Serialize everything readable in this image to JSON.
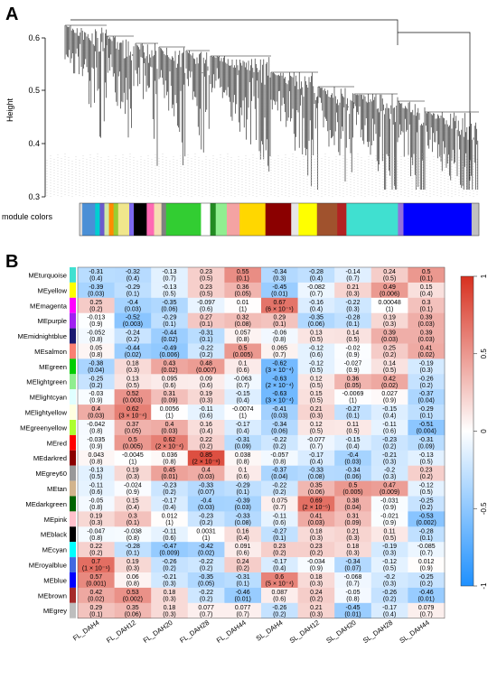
{
  "panel_a": {
    "label": "A",
    "ylabel": "Height",
    "yticks": [
      "0.6",
      "0.5",
      "0.4",
      "0.3"
    ],
    "module_colors_label": "module colors",
    "module_color_bar": [
      "#d9d9d9",
      "#4a8fd6",
      "#00ced1",
      "#6a5acd",
      "#cfe8a8",
      "#ff8c00",
      "#9acd32",
      "#f0e68c",
      "#7b68ee",
      "#000000",
      "#ff69b4",
      "#f5deb3",
      "#808080",
      "#32cd32",
      "#ffffff",
      "#228b22",
      "#90ee90",
      "#f4a3a3",
      "#ffd700",
      "#8b0000",
      "#e6e6e6",
      "#ffff00",
      "#a0522d",
      "#b22222",
      "#40e0d0",
      "#9370db",
      "#0000ff",
      "#c0c0c0"
    ]
  },
  "panel_b": {
    "label": "B",
    "colorbar_ticks": [
      "1",
      "0.5",
      "0",
      "-0.5",
      "-1"
    ],
    "colorbar": {
      "high": "#d7301f",
      "mid": "#ffffff",
      "low": "#1e90ff"
    }
  },
  "chart_data": {
    "type": "heatmap",
    "columns": [
      "FL_DAH4",
      "FL_DAH12",
      "FL_DAH20",
      "FL_DAH28",
      "FL_DAH44",
      "SL_DAH4",
      "SL_DAH12",
      "SL_DAH20",
      "SL_DAH28",
      "SL_DAH44"
    ],
    "rows": [
      {
        "name": "MEturquoise",
        "color": "#40e0d0",
        "values": [
          -0.31,
          -0.32,
          -0.13,
          0.23,
          0.55,
          -0.34,
          -0.28,
          -0.14,
          0.24,
          0.5
        ],
        "pvalues": [
          "(0.4)",
          "(0.4)",
          "(0.7)",
          "(0.5)",
          "(0.1)",
          "(0.3)",
          "(0.4)",
          "(0.7)",
          "(0.5)",
          "(0.1)"
        ]
      },
      {
        "name": "MEyellow",
        "color": "#ffff00",
        "values": [
          -0.39,
          -0.29,
          -0.13,
          0.23,
          0.36,
          -0.45,
          -0.082,
          0.21,
          0.49,
          0.15
        ],
        "pvalues": [
          "(0.03)",
          "(0.1)",
          "(0.5)",
          "(0.5)",
          "(0.05)",
          "(0.01)",
          "(0.7)",
          "(0.3)",
          "(0.006)",
          "(0.4)"
        ]
      },
      {
        "name": "MEmagenta",
        "color": "#ff00ff",
        "values": [
          0.25,
          -0.4,
          -0.35,
          -0.097,
          0.01,
          0.67,
          -0.16,
          -0.22,
          0.00048,
          0.3
        ],
        "pvalues": [
          "(0.2)",
          "(0.03)",
          "(0.06)",
          "(0.6)",
          "(1)",
          "(6 × 10⁻⁵)",
          "(0.4)",
          "(0.3)",
          "(1)",
          "(0.1)"
        ]
      },
      {
        "name": "MEpurple",
        "color": "#a020f0",
        "values": [
          -0.013,
          -0.52,
          -0.29,
          0.27,
          0.32,
          0.29,
          -0.35,
          -0.28,
          0.19,
          0.39
        ],
        "pvalues": [
          "(0.9)",
          "(0.003)",
          "(0.1)",
          "(0.1)",
          "(0.08)",
          "(0.1)",
          "(0.06)",
          "(0.1)",
          "(0.3)",
          "(0.03)"
        ]
      },
      {
        "name": "MEmidnightblue",
        "color": "#191970",
        "values": [
          -0.052,
          -0.24,
          -0.44,
          -0.31,
          0.057,
          -0.06,
          0.13,
          0.14,
          0.39,
          0.39
        ],
        "pvalues": [
          "(0.8)",
          "(0.2)",
          "(0.02)",
          "(0.1)",
          "(0.8)",
          "(0.8)",
          "(0.5)",
          "(0.5)",
          "(0.03)",
          "(0.03)"
        ]
      },
      {
        "name": "MEsalmon",
        "color": "#fa8072",
        "values": [
          0.05,
          -0.44,
          -0.49,
          -0.22,
          0.5,
          0.065,
          -0.12,
          -0.02,
          0.25,
          0.41
        ],
        "pvalues": [
          "(0.8)",
          "(0.02)",
          "(0.006)",
          "(0.2)",
          "(0.005)",
          "(0.7)",
          "(0.6)",
          "(0.9)",
          "(0.2)",
          "(0.02)"
        ]
      },
      {
        "name": "MEgreen",
        "color": "#00cd00",
        "values": [
          -0.38,
          0.18,
          0.43,
          0.48,
          0.1,
          -0.62,
          -0.12,
          -0.027,
          0.14,
          -0.19
        ],
        "pvalues": [
          "(0.04)",
          "(0.3)",
          "(0.02)",
          "(0.007)",
          "(0.6)",
          "(3 × 10⁻⁴)",
          "(0.5)",
          "(0.9)",
          "(0.5)",
          "(0.3)"
        ]
      },
      {
        "name": "MElightgreen",
        "color": "#90ee90",
        "values": [
          -0.25,
          0.13,
          0.095,
          0.09,
          -0.063,
          -0.63,
          0.12,
          0.36,
          0.42,
          -0.26
        ],
        "pvalues": [
          "(0.2)",
          "(0.5)",
          "(0.6)",
          "(0.6)",
          "(0.7)",
          "(2 × 10⁻⁴)",
          "(0.5)",
          "(0.05)",
          "(0.02)",
          "(0.2)"
        ]
      },
      {
        "name": "MElightcyan",
        "color": "#e0ffff",
        "values": [
          -0.03,
          0.52,
          0.31,
          0.19,
          -0.15,
          -0.63,
          0.15,
          -0.0069,
          0.027,
          -0.37
        ],
        "pvalues": [
          "(0.9)",
          "(0.003)",
          "(0.09)",
          "(0.3)",
          "(0.4)",
          "(3 × 10⁻⁴)",
          "(0.5)",
          "(1)",
          "(0.9)",
          "(0.04)"
        ]
      },
      {
        "name": "MElightyellow",
        "color": "#ffffe0",
        "values": [
          0.4,
          0.62,
          0.0056,
          -0.11,
          -0.0074,
          -0.41,
          0.21,
          -0.27,
          -0.15,
          -0.29
        ],
        "pvalues": [
          "(0.03)",
          "(3 × 10⁻⁴)",
          "(1)",
          "(0.6)",
          "(1)",
          "(0.03)",
          "(0.3)",
          "(0.1)",
          "(0.4)",
          "(0.1)"
        ]
      },
      {
        "name": "MEgreenyellow",
        "color": "#adff2f",
        "values": [
          -0.042,
          0.37,
          0.4,
          0.16,
          -0.17,
          -0.34,
          0.12,
          0.11,
          -0.11,
          -0.51
        ],
        "pvalues": [
          "(0.8)",
          "(0.05)",
          "(0.03)",
          "(0.4)",
          "(0.4)",
          "(0.06)",
          "(0.5)",
          "(0.5)",
          "(0.6)",
          "(0.004)"
        ]
      },
      {
        "name": "MEred",
        "color": "#ff0000",
        "values": [
          -0.035,
          0.5,
          0.62,
          0.22,
          -0.31,
          -0.22,
          -0.077,
          -0.15,
          -0.23,
          -0.31
        ],
        "pvalues": [
          "(0.9)",
          "(0.005)",
          "(2 × 10⁻⁴)",
          "(0.2)",
          "(0.09)",
          "(0.2)",
          "(0.7)",
          "(0.4)",
          "(0.2)",
          "(0.09)"
        ]
      },
      {
        "name": "MEdarkred",
        "color": "#8b0000",
        "values": [
          0.043,
          -0.0045,
          0.036,
          0.85,
          0.038,
          -0.057,
          -0.17,
          -0.4,
          -0.21,
          -0.13
        ],
        "pvalues": [
          "(0.8)",
          "(1)",
          "(0.8)",
          "(2 × 10⁻⁹)",
          "(0.8)",
          "(0.8)",
          "(0.4)",
          "(0.03)",
          "(0.3)",
          "(0.5)"
        ]
      },
      {
        "name": "MEgrey60",
        "color": "#999999",
        "values": [
          -0.13,
          0.19,
          0.45,
          0.4,
          0.1,
          -0.37,
          -0.33,
          -0.34,
          -0.2,
          0.23
        ],
        "pvalues": [
          "(0.5)",
          "(0.3)",
          "(0.01)",
          "(0.03)",
          "(0.6)",
          "(0.04)",
          "(0.08)",
          "(0.06)",
          "(0.3)",
          "(0.2)"
        ]
      },
      {
        "name": "MEtan",
        "color": "#d2b48c",
        "values": [
          -0.11,
          -0.024,
          -0.23,
          -0.33,
          -0.29,
          -0.22,
          0.35,
          0.5,
          0.47,
          -0.12
        ],
        "pvalues": [
          "(0.6)",
          "(0.9)",
          "(0.2)",
          "(0.07)",
          "(0.1)",
          "(0.2)",
          "(0.06)",
          "(0.005)",
          "(0.009)",
          "(0.5)"
        ]
      },
      {
        "name": "MEdarkgreen",
        "color": "#006400",
        "values": [
          -0.05,
          0.15,
          -0.17,
          -0.4,
          -0.39,
          0.075,
          0.69,
          0.38,
          -0.031,
          -0.25
        ],
        "pvalues": [
          "(0.8)",
          "(0.4)",
          "(0.4)",
          "(0.03)",
          "(0.03)",
          "(0.7)",
          "(2 × 10⁻⁵)",
          "(0.04)",
          "(0.9)",
          "(0.2)"
        ]
      },
      {
        "name": "MEpink",
        "color": "#ffc0cb",
        "values": [
          0.19,
          0.3,
          0.012,
          -0.23,
          -0.33,
          -0.11,
          0.41,
          0.31,
          -0.021,
          -0.53
        ],
        "pvalues": [
          "(0.3)",
          "(0.1)",
          "(1)",
          "(0.2)",
          "(0.08)",
          "(0.6)",
          "(0.03)",
          "(0.09)",
          "(0.9)",
          "(0.002)"
        ]
      },
      {
        "name": "MEblack",
        "color": "#000000",
        "values": [
          -0.047,
          -0.038,
          -0.11,
          0.0031,
          0.16,
          -0.27,
          0.18,
          0.21,
          0.11,
          -0.28
        ],
        "pvalues": [
          "(0.8)",
          "(0.8)",
          "(0.6)",
          "(1)",
          "(0.4)",
          "(0.1)",
          "(0.3)",
          "(0.3)",
          "(0.5)",
          "(0.1)"
        ]
      },
      {
        "name": "MEcyan",
        "color": "#00ffff",
        "values": [
          0.22,
          -0.28,
          -0.47,
          -0.42,
          0.091,
          0.23,
          0.23,
          0.18,
          -0.19,
          -0.085
        ],
        "pvalues": [
          "(0.2)",
          "(0.1)",
          "(0.009)",
          "(0.02)",
          "(0.6)",
          "(0.2)",
          "(0.2)",
          "(0.3)",
          "(0.3)",
          "(0.7)"
        ]
      },
      {
        "name": "MEroyalblue",
        "color": "#4169e1",
        "values": [
          0.7,
          0.19,
          -0.26,
          -0.22,
          0.24,
          -0.17,
          -0.034,
          -0.34,
          -0.12,
          0.012
        ],
        "pvalues": [
          "(1 × 10⁻⁵)",
          "(0.3)",
          "(0.2)",
          "(0.2)",
          "(0.2)",
          "(0.4)",
          "(0.9)",
          "(0.07)",
          "(0.5)",
          "(0.9)"
        ]
      },
      {
        "name": "MEblue",
        "color": "#0000ff",
        "values": [
          0.57,
          0.06,
          -0.21,
          -0.35,
          -0.31,
          0.6,
          0.18,
          -0.068,
          -0.2,
          -0.25
        ],
        "pvalues": [
          "(0.001)",
          "(0.8)",
          "(0.3)",
          "(0.05)",
          "(0.1)",
          "(5 × 10⁻⁴)",
          "(0.3)",
          "(0.7)",
          "(0.3)",
          "(0.2)"
        ]
      },
      {
        "name": "MEbrown",
        "color": "#a52a2a",
        "values": [
          0.42,
          0.53,
          0.18,
          -0.22,
          -0.46,
          0.087,
          0.24,
          -0.05,
          -0.26,
          -0.46
        ],
        "pvalues": [
          "(0.02)",
          "(0.002)",
          "(0.3)",
          "(0.2)",
          "(0.01)",
          "(0.6)",
          "(0.2)",
          "(0.8)",
          "(0.2)",
          "(0.01)"
        ]
      },
      {
        "name": "MEgrey",
        "color": "#bebebe",
        "values": [
          0.29,
          0.35,
          0.18,
          0.077,
          0.077,
          -0.26,
          0.21,
          -0.45,
          -0.17,
          0.079
        ],
        "pvalues": [
          "(0.1)",
          "(0.06)",
          "(0.3)",
          "(0.7)",
          "(0.7)",
          "(0.2)",
          "(0.3)",
          "(0.01)",
          "(0.4)",
          "(0.7)"
        ]
      }
    ]
  }
}
